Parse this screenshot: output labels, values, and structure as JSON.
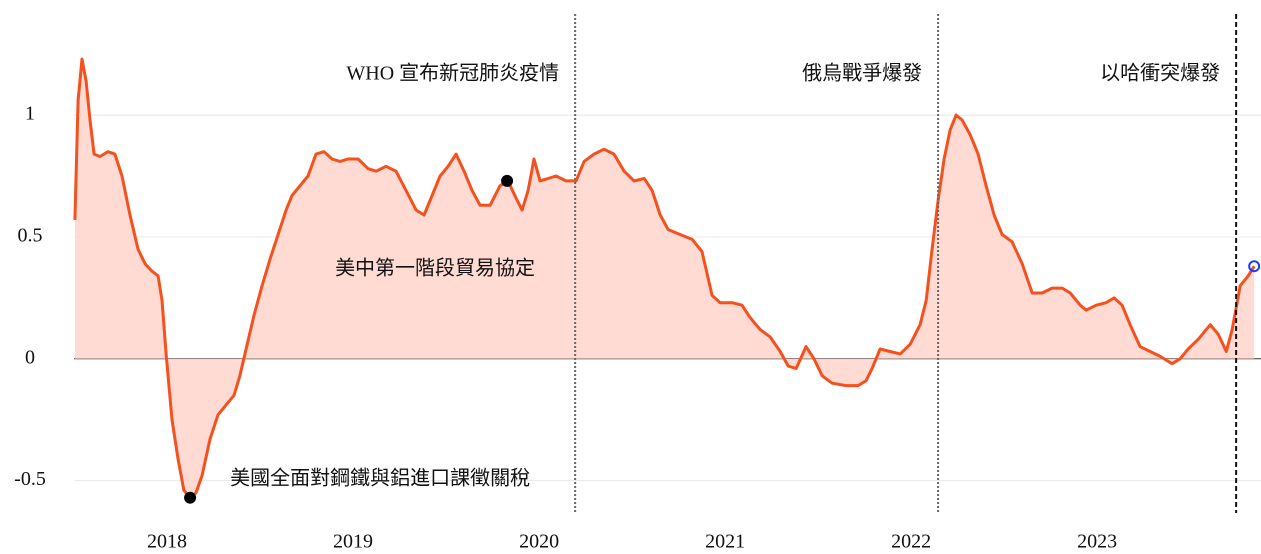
{
  "chart_data": {
    "type": "area",
    "x": [
      2017.505,
      2017.522,
      2017.543,
      2017.565,
      2017.586,
      2017.608,
      2017.64,
      2017.683,
      2017.72,
      2017.758,
      2017.801,
      2017.844,
      2017.882,
      2017.919,
      2017.952,
      2017.973,
      2017.995,
      2018.027,
      2018.059,
      2018.091,
      2018.124,
      2018.156,
      2018.188,
      2018.231,
      2018.274,
      2018.317,
      2018.36,
      2018.392,
      2018.425,
      2018.468,
      2018.511,
      2018.554,
      2018.597,
      2018.64,
      2018.672,
      2018.715,
      2018.758,
      2018.801,
      2018.844,
      2018.887,
      2018.93,
      2018.973,
      2019.027,
      2019.081,
      2019.124,
      2019.177,
      2019.231,
      2019.285,
      2019.339,
      2019.382,
      2019.425,
      2019.468,
      2019.511,
      2019.554,
      2019.597,
      2019.64,
      2019.683,
      2019.737,
      2019.79,
      2019.833,
      2019.876,
      2019.909,
      2019.941,
      2019.973,
      2020.005,
      2020.048,
      2020.091,
      2020.145,
      2020.199,
      2020.242,
      2020.296,
      2020.349,
      2020.403,
      2020.457,
      2020.511,
      2020.565,
      2020.608,
      2020.651,
      2020.694,
      2020.758,
      2020.823,
      2020.876,
      2020.93,
      2020.973,
      2021.038,
      2021.091,
      2021.134,
      2021.188,
      2021.242,
      2021.296,
      2021.339,
      2021.382,
      2021.435,
      2021.478,
      2021.522,
      2021.575,
      2021.651,
      2021.715,
      2021.758,
      2021.79,
      2021.833,
      2021.887,
      2021.941,
      2021.995,
      2022.048,
      2022.081,
      2022.113,
      2022.145,
      2022.177,
      2022.21,
      2022.242,
      2022.274,
      2022.317,
      2022.36,
      2022.403,
      2022.446,
      2022.489,
      2022.543,
      2022.597,
      2022.651,
      2022.704,
      2022.758,
      2022.812,
      2022.855,
      2022.909,
      2022.941,
      2022.995,
      2023.048,
      2023.091,
      2023.134,
      2023.177,
      2023.231,
      2023.285,
      2023.339,
      2023.403,
      2023.446,
      2023.489,
      2023.543,
      2023.608,
      2023.651,
      2023.694,
      2023.726,
      2023.769,
      2023.812,
      2023.844
    ],
    "values": [
      0.57,
      1.06,
      1.23,
      1.14,
      0.98,
      0.84,
      0.83,
      0.85,
      0.84,
      0.75,
      0.59,
      0.45,
      0.39,
      0.36,
      0.34,
      0.24,
      0.02,
      -0.25,
      -0.41,
      -0.54,
      -0.57,
      -0.55,
      -0.48,
      -0.33,
      -0.23,
      -0.19,
      -0.15,
      -0.07,
      0.04,
      0.18,
      0.3,
      0.41,
      0.51,
      0.61,
      0.67,
      0.71,
      0.75,
      0.84,
      0.85,
      0.82,
      0.81,
      0.82,
      0.82,
      0.78,
      0.77,
      0.79,
      0.77,
      0.69,
      0.61,
      0.59,
      0.67,
      0.75,
      0.79,
      0.84,
      0.77,
      0.69,
      0.63,
      0.63,
      0.71,
      0.73,
      0.66,
      0.61,
      0.69,
      0.82,
      0.73,
      0.74,
      0.75,
      0.73,
      0.73,
      0.81,
      0.84,
      0.86,
      0.84,
      0.77,
      0.73,
      0.74,
      0.69,
      0.59,
      0.53,
      0.51,
      0.49,
      0.44,
      0.26,
      0.23,
      0.23,
      0.22,
      0.17,
      0.12,
      0.09,
      0.03,
      -0.03,
      -0.04,
      0.05,
      0.0,
      -0.07,
      -0.1,
      -0.11,
      -0.11,
      -0.09,
      -0.04,
      0.04,
      0.03,
      0.02,
      0.06,
      0.14,
      0.24,
      0.45,
      0.65,
      0.82,
      0.94,
      1.0,
      0.98,
      0.92,
      0.84,
      0.71,
      0.59,
      0.51,
      0.48,
      0.39,
      0.27,
      0.27,
      0.29,
      0.29,
      0.27,
      0.22,
      0.2,
      0.22,
      0.23,
      0.25,
      0.22,
      0.14,
      0.05,
      0.03,
      0.01,
      -0.02,
      0.0,
      0.04,
      0.08,
      0.14,
      0.1,
      0.03,
      0.12,
      0.3,
      0.34,
      0.38
    ],
    "color": "#f4511e",
    "fill_color": "#ffd5cb",
    "xlim": [
      2017.5,
      2023.87
    ],
    "ylim": [
      -0.6,
      1.3
    ],
    "xticks": [
      2018,
      2019,
      2020,
      2021,
      2022,
      2023
    ],
    "yticks": [
      -0.5,
      0,
      0.5,
      1
    ],
    "grid": true,
    "events": [
      {
        "x": 2020.194,
        "label": "WHO 宣布新冠肺炎疫情",
        "style": "dotted",
        "color": "#666666"
      },
      {
        "x": 2022.145,
        "label": "俄烏戰爭爆發",
        "style": "dotted",
        "color": "#666666"
      },
      {
        "x": 2023.747,
        "label": "以哈衝突爆發",
        "style": "dashed",
        "color": "#111111"
      }
    ],
    "points": [
      {
        "x": 2018.124,
        "y": -0.57,
        "label": "美國全面對鋼鐵與鋁進口課徵關稅"
      },
      {
        "x": 2019.828,
        "y": 0.73,
        "label": "美中第一階段貿易協定"
      }
    ],
    "end_marker_color": "#1a3cff"
  }
}
